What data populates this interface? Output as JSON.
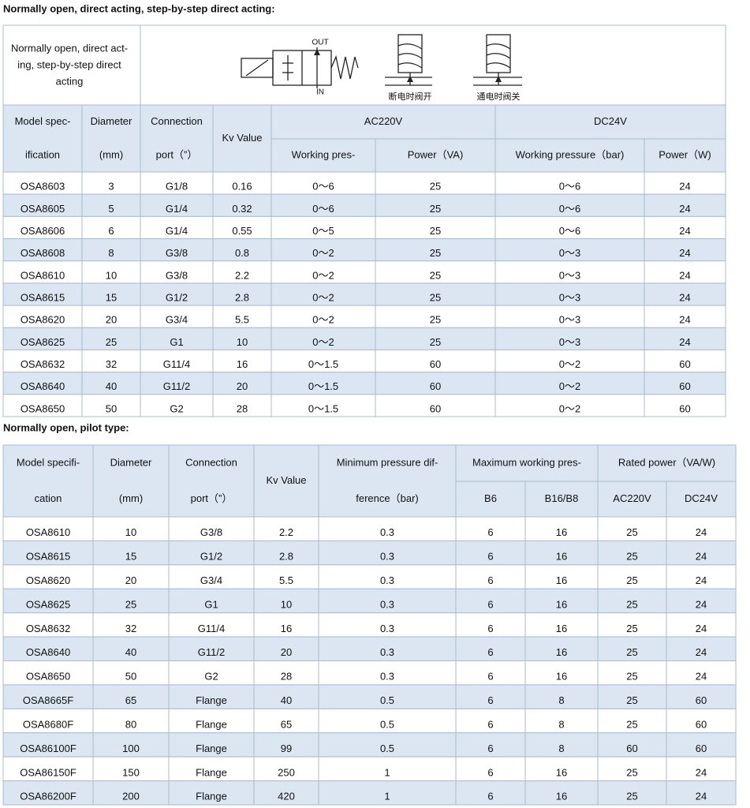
{
  "section1": {
    "title": "Normally open, direct acting, step-by-step direct acting:",
    "diagram": {
      "caption_lines": [
        "Normally open, direct act-",
        "ing, step-by-step direct",
        "acting"
      ],
      "out": "OUT",
      "in": "IN",
      "open_label": "断电时阀开",
      "close_label": "通电时阀关"
    },
    "table": {
      "header": [
        {
          "lines": [
            "Model spec-",
            "ification"
          ]
        },
        {
          "lines": [
            "Diameter",
            "(mm)"
          ]
        },
        {
          "lines": [
            "Connection",
            "port（”）"
          ]
        },
        {
          "lines": [
            "Kv Value"
          ]
        },
        {
          "lines": [
            "AC220V"
          ]
        },
        {
          "lines": [
            "DC24V"
          ]
        },
        {
          "lines": [
            "Working pres-"
          ]
        },
        {
          "lines": [
            "Power（VA)"
          ]
        },
        {
          "lines": [
            "Working pressure（bar)"
          ]
        },
        {
          "lines": [
            "Power（W)"
          ]
        }
      ],
      "rows": [
        [
          "OSA8603",
          3,
          "G1/8",
          0.16,
          "0～6",
          25,
          "0～6",
          24
        ],
        [
          "OSA8605",
          5,
          "G1/4",
          0.32,
          "0～6",
          25,
          "0～6",
          24
        ],
        [
          "OSA8606",
          6,
          "G1/4",
          0.55,
          "0～5",
          25,
          "0～6",
          24
        ],
        [
          "OSA8608",
          8,
          "G3/8",
          0.8,
          "0～2",
          25,
          "0～3",
          24
        ],
        [
          "OSA8610",
          10,
          "G3/8",
          2.2,
          "0～2",
          25,
          "0～3",
          24
        ],
        [
          "OSA8615",
          15,
          "G1/2",
          2.8,
          "0～2",
          25,
          "0～3",
          24
        ],
        [
          "OSA8620",
          20,
          "G3/4",
          5.5,
          "0～2",
          25,
          "0～3",
          24
        ],
        [
          "OSA8625",
          25,
          "G1",
          10,
          "0～2",
          25,
          "0～3",
          24
        ],
        [
          "OSA8632",
          32,
          "G11/4",
          16,
          "0～1.5",
          60,
          "0～2",
          60
        ],
        [
          "OSA8640",
          40,
          "G11/2",
          20,
          "0～1.5",
          60,
          "0～2",
          60
        ],
        [
          "OSA8650",
          50,
          "G2",
          28,
          "0～1.5",
          60,
          "0～2",
          60
        ]
      ]
    }
  },
  "section2": {
    "title": "Normally open, pilot type:",
    "table": {
      "header": [
        {
          "lines": [
            "Model specifi-",
            "cation"
          ]
        },
        {
          "lines": [
            "Diameter",
            "(mm)"
          ]
        },
        {
          "lines": [
            "Connection",
            "port（”）"
          ]
        },
        {
          "lines": [
            "Kv Value"
          ]
        },
        {
          "lines": [
            "Minimum pressure dif-",
            "ference（bar)"
          ]
        },
        {
          "lines": [
            "Maximum working pres-"
          ]
        },
        {
          "lines": [
            "Rated power（VA/W)"
          ]
        },
        {
          "lines": [
            "B6"
          ]
        },
        {
          "lines": [
            "B16/B8"
          ]
        },
        {
          "lines": [
            "AC220V"
          ]
        },
        {
          "lines": [
            "DC24V"
          ]
        }
      ],
      "rows": [
        [
          "OSA8610",
          10,
          "G3/8",
          2.2,
          0.3,
          6,
          16,
          25,
          24
        ],
        [
          "OSA8615",
          15,
          "G1/2",
          2.8,
          0.3,
          6,
          16,
          25,
          24
        ],
        [
          "OSA8620",
          20,
          "G3/4",
          5.5,
          0.3,
          6,
          16,
          25,
          24
        ],
        [
          "OSA8625",
          25,
          "G1",
          10,
          0.3,
          6,
          16,
          25,
          24
        ],
        [
          "OSA8632",
          32,
          "G11/4",
          16,
          0.3,
          6,
          16,
          25,
          24
        ],
        [
          "OSA8640",
          40,
          "G11/2",
          20,
          0.3,
          6,
          16,
          25,
          24
        ],
        [
          "OSA8650",
          50,
          "G2",
          28,
          0.3,
          6,
          16,
          25,
          24
        ],
        [
          "OSA8665F",
          65,
          "Flange",
          40,
          0.5,
          6,
          8,
          25,
          60
        ],
        [
          "OSA8680F",
          80,
          "Flange",
          65,
          0.5,
          6,
          8,
          25,
          60
        ],
        [
          "OSA86100F",
          100,
          "Flange",
          99,
          0.5,
          6,
          8,
          60,
          60
        ],
        [
          "OSA86150F",
          150,
          "Flange",
          250,
          1,
          6,
          16,
          25,
          24
        ],
        [
          "OSA86200F",
          200,
          "Flange",
          420,
          1,
          6,
          16,
          25,
          24
        ]
      ]
    }
  }
}
